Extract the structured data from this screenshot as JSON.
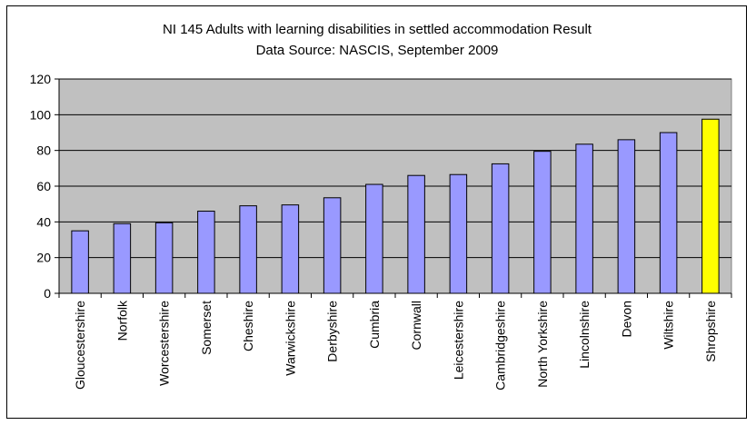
{
  "chart_data": {
    "type": "bar",
    "title": "NI 145 Adults with learning disabilities in settled accommodation Result",
    "subtitle": "Data Source: NASCIS, September 2009",
    "xlabel": "",
    "ylabel": "",
    "categories": [
      "Gloucestershire",
      "Norfolk",
      "Worcestershire",
      "Somerset",
      "Cheshire",
      "Warwickshire",
      "Derbyshire",
      "Cumbria",
      "Cornwall",
      "Leicestershire",
      "Cambridgeshire",
      "North Yorkshire",
      "Lincolnshire",
      "Devon",
      "Wiltshire",
      "Shropshire"
    ],
    "values": [
      35,
      39,
      39.5,
      46,
      49,
      49.5,
      53.5,
      61,
      66,
      66.5,
      72.5,
      79.5,
      83.5,
      86,
      90,
      97.5
    ],
    "ylim": [
      0,
      120
    ],
    "yticks": [
      0,
      20,
      40,
      60,
      80,
      100,
      120
    ],
    "grid": true,
    "legend": "none",
    "colors": {
      "bar": "#9999ff",
      "highlight": "#ffff00",
      "plot_background": "#c0c0c0",
      "gridline": "#000000",
      "bar_border": "#000000"
    },
    "highlight_category": "Shropshire"
  }
}
